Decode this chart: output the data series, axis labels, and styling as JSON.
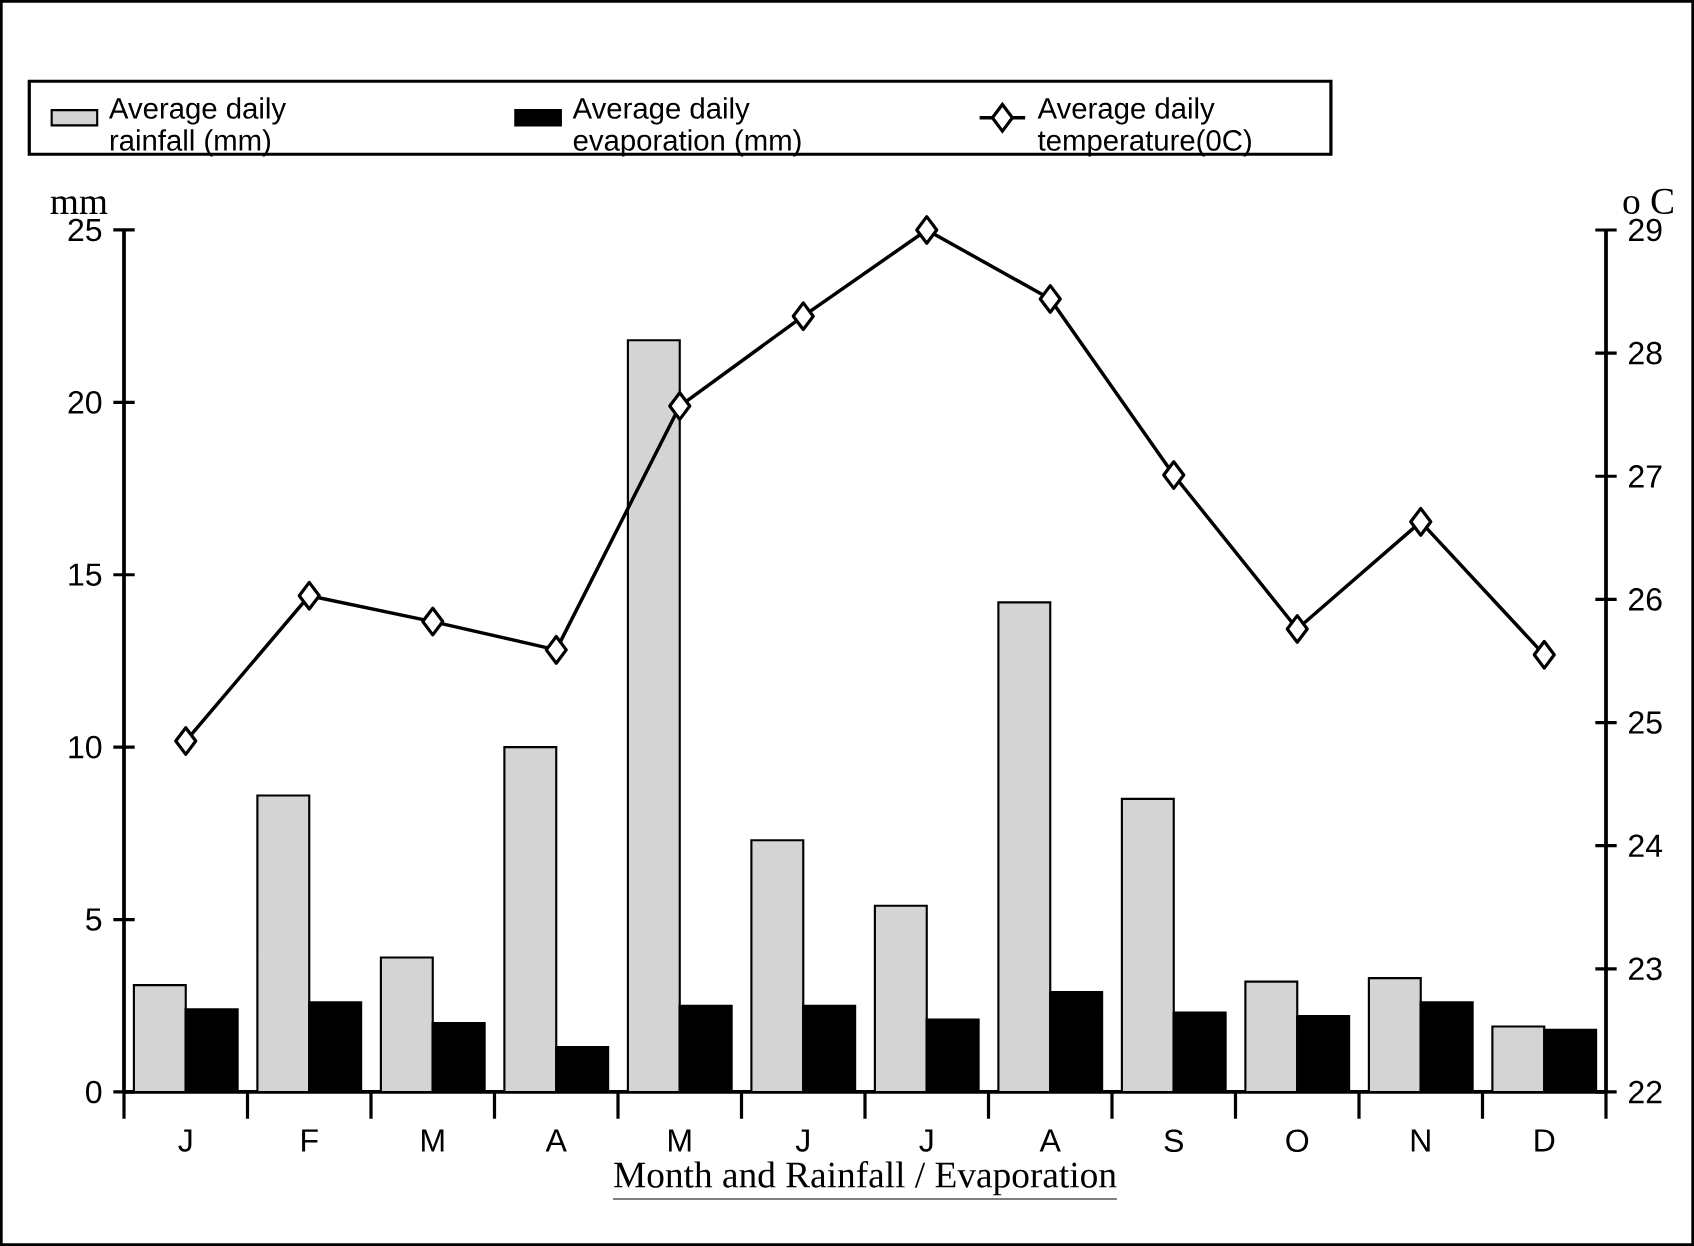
{
  "chart_data": {
    "type": "bar",
    "xlabel": "Month and Rainfall / Evaporation",
    "ylabel": "mm",
    "y2label": "o C",
    "categories": [
      "J",
      "F",
      "M",
      "A",
      "M",
      "J",
      "J",
      "A",
      "S",
      "O",
      "N",
      "D"
    ],
    "series": [
      {
        "name": "Average daily rainfall (mm)",
        "color": "#d4d4d4",
        "values": [
          3.1,
          8.6,
          3.9,
          10.0,
          21.8,
          7.3,
          5.4,
          14.2,
          8.5,
          3.2,
          3.3,
          1.9
        ]
      },
      {
        "name": "Average daily evaporation (mm)",
        "color": "#000000",
        "values": [
          2.4,
          2.6,
          2.0,
          1.3,
          2.5,
          2.5,
          2.1,
          2.9,
          2.3,
          2.2,
          2.6,
          1.8
        ]
      },
      {
        "name": "Average daily temperature(0C)",
        "type": "line",
        "axis": "y2",
        "color": "#000000",
        "marker": "diamond",
        "values": [
          24.85,
          26.03,
          25.82,
          25.59,
          27.57,
          28.3,
          29.0,
          28.44,
          27.01,
          25.76,
          26.63,
          25.55
        ]
      }
    ],
    "ylim": [
      0,
      25
    ],
    "yticks": [
      0,
      5,
      10,
      15,
      20,
      25
    ],
    "y2lim": [
      22,
      29
    ],
    "y2ticks": [
      22,
      23,
      24,
      25,
      26,
      27,
      28,
      29
    ],
    "grid": false,
    "legend": "top"
  }
}
